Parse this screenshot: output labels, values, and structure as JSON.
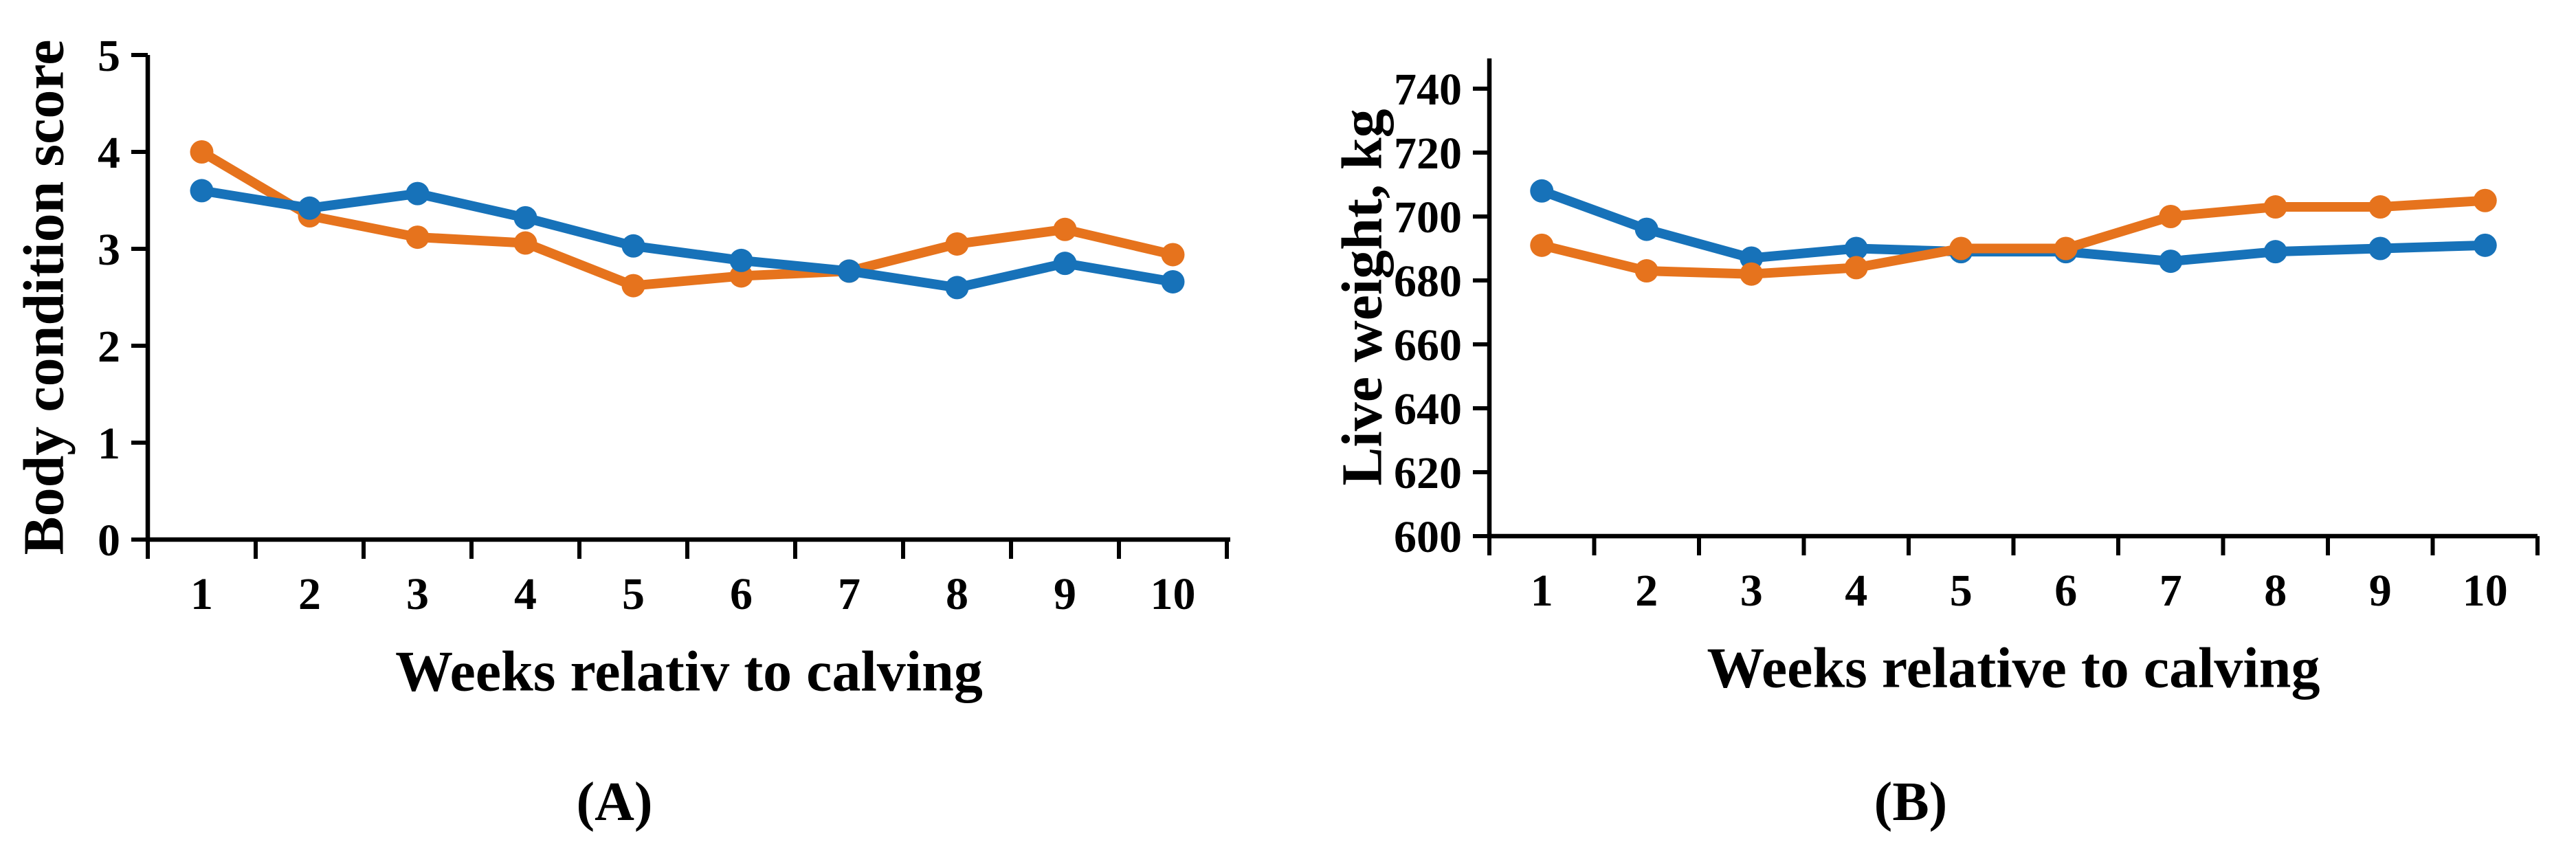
{
  "figure": {
    "caption_a": "(A)",
    "caption_b": "(B)"
  },
  "colors": {
    "series_blue": "#1772b9",
    "series_orange": "#e6731d",
    "axis": "#000000",
    "background": "#ffffff"
  },
  "chart_data": [
    {
      "type": "line",
      "panel": "A",
      "xlabel": "Weeks relativ to calving",
      "ylabel": "Body condition score",
      "x": [
        1,
        2,
        3,
        4,
        5,
        6,
        7,
        8,
        9,
        10
      ],
      "ylim": [
        0,
        5
      ],
      "yticks": [
        0,
        1,
        2,
        3,
        4,
        5
      ],
      "grid": false,
      "legend": "none",
      "series": [
        {
          "name": "orange",
          "color": "#e6731d",
          "values": [
            4.0,
            3.34,
            3.12,
            3.06,
            2.62,
            2.72,
            2.77,
            3.05,
            3.2,
            2.94
          ]
        },
        {
          "name": "blue",
          "color": "#1772b9",
          "values": [
            3.6,
            3.42,
            3.57,
            3.32,
            3.03,
            2.88,
            2.77,
            2.6,
            2.85,
            2.66
          ]
        }
      ]
    },
    {
      "type": "line",
      "panel": "B",
      "xlabel": "Weeks relative to calving",
      "ylabel": "Live weight, kg",
      "x": [
        1,
        2,
        3,
        4,
        5,
        6,
        7,
        8,
        9,
        10
      ],
      "ylim": [
        600,
        750
      ],
      "yticks": [
        600,
        620,
        640,
        660,
        680,
        700,
        720,
        740
      ],
      "grid": false,
      "legend": "none",
      "series": [
        {
          "name": "blue",
          "color": "#1772b9",
          "values": [
            708,
            696,
            687,
            690,
            689,
            689,
            686,
            689,
            690,
            691
          ]
        },
        {
          "name": "orange",
          "color": "#e6731d",
          "values": [
            691,
            683,
            682,
            684,
            690,
            690,
            700,
            703,
            703,
            705
          ]
        }
      ]
    }
  ]
}
